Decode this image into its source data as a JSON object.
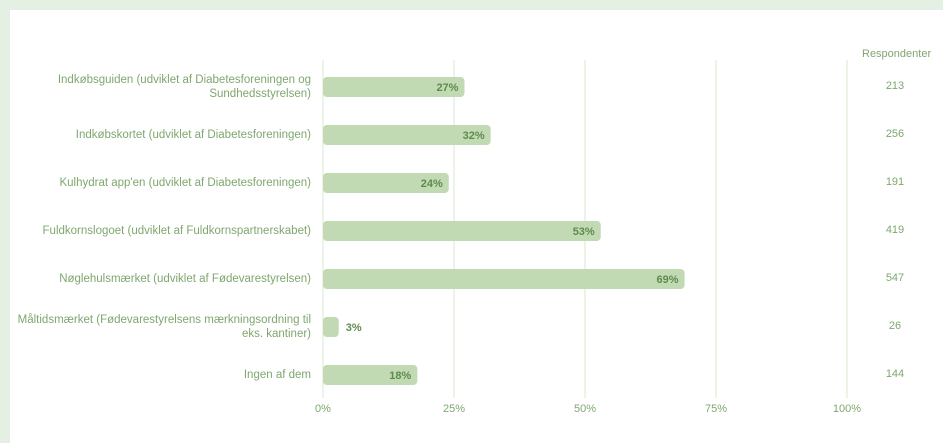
{
  "colors": {
    "bar": "#c1dab3",
    "text": "#7fa76f",
    "value_label": "#5f8a4e",
    "grid": "#d9e8d2",
    "background": "#e3f0e3"
  },
  "chart_data": {
    "type": "bar",
    "orientation": "horizontal",
    "categories": [
      "Indkøbsguiden (udviklet af Diabetesforeningen og Sundhedsstyrelsen)",
      "Indkøbskortet (udviklet af Diabetesforeningen)",
      "Kulhydrat app'en (udviklet af Diabetesforeningen)",
      "Fuldkornslogoet (udviklet af Fuldkornspartnerskabet)",
      "Nøglehulsmærket (udviklet af Fødevarestyrelsen)",
      "Måltidsmærket (Fødevarestyrelsens mærkningsordning til eks. kantiner)",
      "Ingen af dem"
    ],
    "values": [
      27,
      32,
      24,
      53,
      69,
      3,
      18
    ],
    "value_labels": [
      "27%",
      "32%",
      "24%",
      "53%",
      "69%",
      "3%",
      "18%"
    ],
    "xlim": [
      0,
      100
    ],
    "x_ticks": [
      "0%",
      "25%",
      "50%",
      "75%",
      "100%"
    ],
    "grid": true,
    "respondents_header": "Respondenter",
    "respondents": [
      "213",
      "256",
      "191",
      "419",
      "547",
      "26",
      "144"
    ]
  }
}
